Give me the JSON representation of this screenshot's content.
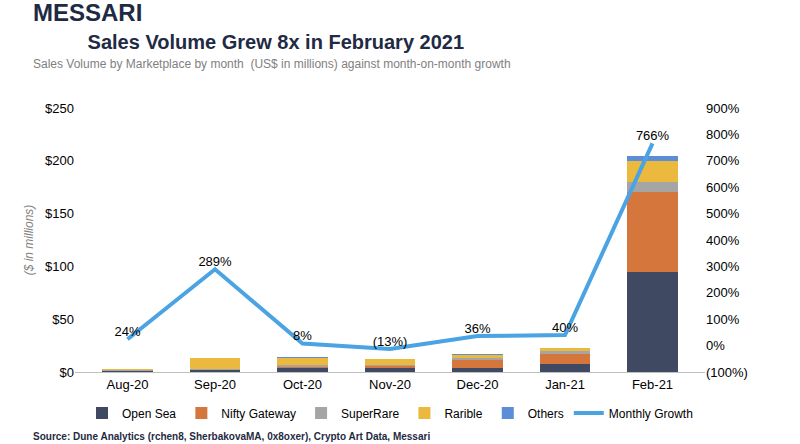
{
  "chart_data": {
    "type": "bar",
    "brand": "MESSARI",
    "title": "Sales Volume Grew 8x in February 2021",
    "subtitle": "Sales Volume by Marketplace by month  (US$ in millions) against month-on-month growth",
    "y_label": "($ in millions)",
    "source": "Source: Dune Analytics (rchen8, SherbakovaMA, 0x8oxer), Crypto Art Data, Messari",
    "stacked": true,
    "grid": false,
    "legend": "bottom",
    "categories": [
      "Aug-20",
      "Sep-20",
      "Oct-20",
      "Nov-20",
      "Dec-20",
      "Jan-21",
      "Feb-21"
    ],
    "series": [
      {
        "name": "Open Sea",
        "type": "bar",
        "color": "#3f4a62",
        "values": [
          1,
          2,
          4,
          3.5,
          4,
          8,
          95
        ]
      },
      {
        "name": "Nifty Gateway",
        "type": "bar",
        "color": "#d5763c",
        "values": [
          0,
          0.3,
          1,
          2,
          7,
          9,
          75
        ]
      },
      {
        "name": "SuperRare",
        "type": "bar",
        "color": "#a5a5a5",
        "values": [
          0.5,
          1,
          2,
          1.5,
          2,
          3,
          10
        ]
      },
      {
        "name": "Rarible",
        "type": "bar",
        "color": "#eab93d",
        "values": [
          1.2,
          9.5,
          6.5,
          5,
          3.5,
          2.5,
          20
        ]
      },
      {
        "name": "Others",
        "type": "bar",
        "color": "#5b8ed6",
        "values": [
          0.3,
          0.2,
          0.5,
          0.3,
          0.5,
          0.5,
          5
        ]
      },
      {
        "name": "Monthly Growth",
        "type": "line",
        "axis": "y2",
        "color": "#4aa3e2",
        "data_labels": true,
        "values": [
          24,
          289,
          8,
          -13,
          36,
          40,
          766
        ],
        "value_labels": [
          "24%",
          "289%",
          "8%",
          "(13%)",
          "36%",
          "40%",
          "766%"
        ]
      }
    ],
    "ylim": [
      0,
      250
    ],
    "yticks": [
      {
        "value": 0,
        "label": "$0"
      },
      {
        "value": 50,
        "label": "$50"
      },
      {
        "value": 100,
        "label": "$100"
      },
      {
        "value": 150,
        "label": "$150"
      },
      {
        "value": 200,
        "label": "$200"
      },
      {
        "value": 250,
        "label": "$250"
      }
    ],
    "y2lim": [
      -100,
      900
    ],
    "y2ticks": [
      {
        "value": -100,
        "label": "(100%)"
      },
      {
        "value": 0,
        "label": "0%"
      },
      {
        "value": 100,
        "label": "100%"
      },
      {
        "value": 200,
        "label": "200%"
      },
      {
        "value": 300,
        "label": "300%"
      },
      {
        "value": 400,
        "label": "400%"
      },
      {
        "value": 500,
        "label": "500%"
      },
      {
        "value": 600,
        "label": "600%"
      },
      {
        "value": 700,
        "label": "700%"
      },
      {
        "value": 800,
        "label": "800%"
      },
      {
        "value": 900,
        "label": "900%"
      }
    ]
  }
}
